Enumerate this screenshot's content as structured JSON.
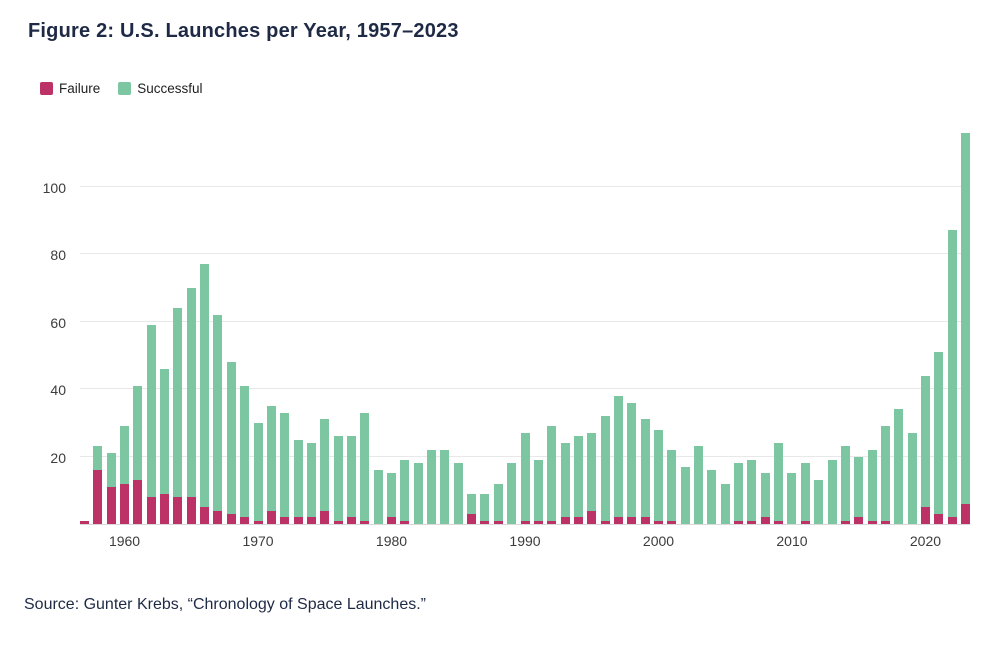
{
  "title": "Figure 2: U.S. Launches per Year, 1957–2023",
  "source": "Source: Gunter Krebs, “Chronology of Space Launches.”",
  "legend": [
    {
      "label": "Failure",
      "color": "#bc3266"
    },
    {
      "label": "Successful",
      "color": "#7dc6a2"
    }
  ],
  "chart_data": {
    "type": "bar",
    "stacked": true,
    "title": "Figure 2: U.S. Launches per Year, 1957–2023",
    "xlabel": "",
    "ylabel": "",
    "ylim": [
      0,
      120
    ],
    "yticks": [
      20,
      40,
      60,
      80,
      100
    ],
    "xticks": [
      1960,
      1970,
      1980,
      1990,
      2000,
      2010,
      2020
    ],
    "grid": true,
    "legend_position": "top-left",
    "x": [
      1957,
      1958,
      1959,
      1960,
      1961,
      1962,
      1963,
      1964,
      1965,
      1966,
      1967,
      1968,
      1969,
      1970,
      1971,
      1972,
      1973,
      1974,
      1975,
      1976,
      1977,
      1978,
      1979,
      1980,
      1981,
      1982,
      1983,
      1984,
      1985,
      1986,
      1987,
      1988,
      1989,
      1990,
      1991,
      1992,
      1993,
      1994,
      1995,
      1996,
      1997,
      1998,
      1999,
      2000,
      2001,
      2002,
      2003,
      2004,
      2005,
      2006,
      2007,
      2008,
      2009,
      2010,
      2011,
      2012,
      2013,
      2014,
      2015,
      2016,
      2017,
      2018,
      2019,
      2020,
      2021,
      2022,
      2023
    ],
    "series": [
      {
        "name": "Failure",
        "color": "#bc3266",
        "values": [
          1,
          16,
          11,
          12,
          13,
          8,
          9,
          8,
          8,
          5,
          4,
          3,
          2,
          1,
          4,
          2,
          2,
          2,
          4,
          1,
          2,
          1,
          0,
          2,
          1,
          0,
          0,
          0,
          0,
          3,
          1,
          1,
          0,
          1,
          1,
          1,
          2,
          2,
          4,
          1,
          2,
          2,
          2,
          1,
          1,
          0,
          0,
          0,
          0,
          1,
          1,
          2,
          1,
          0,
          1,
          0,
          0,
          1,
          2,
          1,
          1,
          0,
          0,
          5,
          3,
          2,
          6
        ]
      },
      {
        "name": "Successful",
        "color": "#7dc6a2",
        "values": [
          0,
          7,
          10,
          17,
          28,
          51,
          37,
          56,
          62,
          72,
          58,
          45,
          39,
          29,
          31,
          31,
          23,
          22,
          27,
          25,
          24,
          32,
          16,
          13,
          18,
          18,
          22,
          22,
          18,
          6,
          8,
          11,
          18,
          26,
          18,
          28,
          22,
          24,
          23,
          31,
          36,
          34,
          29,
          27,
          21,
          17,
          23,
          16,
          12,
          17,
          18,
          13,
          23,
          15,
          17,
          13,
          19,
          22,
          18,
          21,
          28,
          34,
          27,
          39,
          48,
          85,
          110
        ]
      }
    ]
  }
}
